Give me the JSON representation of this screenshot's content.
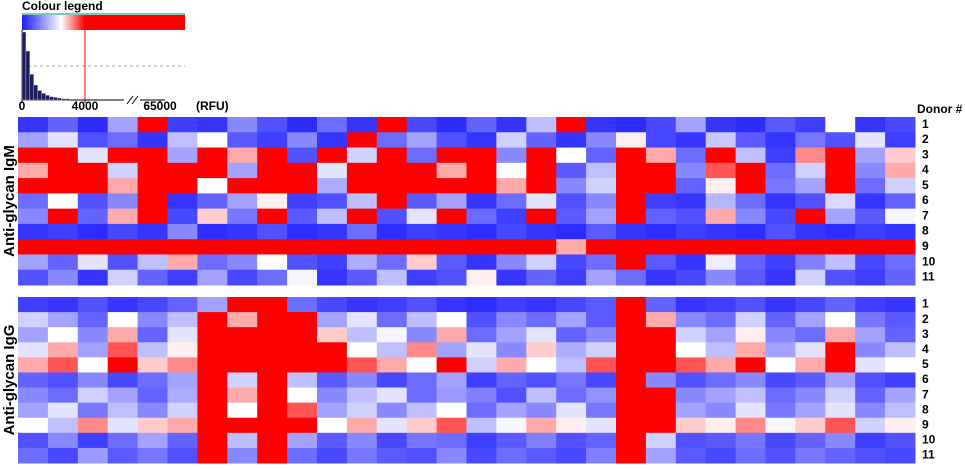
{
  "chart_data": [
    {
      "type": "histogram",
      "title": "Colour legend",
      "xlabel": "(RFU)",
      "bins": [
        0,
        250,
        500,
        750,
        1000,
        1250,
        1500,
        1750,
        2000,
        2250,
        2500,
        2750,
        3000
      ],
      "counts": [
        100,
        72,
        38,
        22,
        14,
        10,
        7,
        5,
        4,
        3,
        2,
        2
      ],
      "ylim": [
        0,
        100
      ],
      "xticks": [
        0,
        4000,
        65000
      ],
      "color": "#1c1c5a",
      "marker_color": "#ff0000",
      "color_stops": [
        {
          "value": 0,
          "color": "#1a1aff"
        },
        {
          "value": 2500,
          "color": "#ffffff"
        },
        {
          "value": 4000,
          "color": "#ff0000"
        }
      ]
    },
    {
      "type": "heatmap",
      "ylabel": "Anti-glycan IgM",
      "rows_title": "Donor #",
      "rows": [
        "1",
        "2",
        "3",
        "4",
        "5",
        "6",
        "7",
        "8",
        "9",
        "10",
        "11"
      ],
      "values": [
        [
          300,
          800,
          200,
          1500,
          5000,
          400,
          300,
          1200,
          600,
          200,
          900,
          300,
          4500,
          500,
          200,
          800,
          300,
          1800,
          6000,
          300,
          200,
          500,
          1500,
          300,
          200,
          700,
          400,
          2500,
          300,
          500
        ],
        [
          1500,
          2200,
          600,
          900,
          300,
          1800,
          2500,
          700,
          400,
          1200,
          300,
          5000,
          900,
          1500,
          600,
          300,
          2000,
          800,
          300,
          1200,
          2600,
          500,
          300,
          1900,
          700,
          300,
          1000,
          600,
          2200,
          400
        ],
        [
          6000,
          5000,
          2200,
          7000,
          4500,
          1500,
          8000,
          3000,
          5000,
          600,
          4800,
          2000,
          6000,
          900,
          7000,
          4200,
          1200,
          5500,
          2500,
          800,
          4600,
          3000,
          900,
          5200,
          1800,
          400,
          3200,
          6000,
          1500,
          2800
        ],
        [
          3000,
          7000,
          5500,
          2000,
          9000,
          6000,
          4000,
          1500,
          8000,
          7000,
          2200,
          5000,
          9500,
          6500,
          3000,
          8000,
          2500,
          12000,
          700,
          1800,
          6500,
          4400,
          1200,
          3500,
          5800,
          900,
          2000,
          4700,
          1200,
          3000
        ],
        [
          5000,
          8000,
          6000,
          3000,
          10000,
          7000,
          2500,
          6000,
          9000,
          4500,
          1600,
          7500,
          8000,
          12000,
          4200,
          6000,
          3000,
          9000,
          1200,
          2000,
          7000,
          5000,
          800,
          2600,
          6000,
          1000,
          1500,
          5000,
          900,
          2000
        ],
        [
          900,
          2500,
          600,
          1200,
          5000,
          300,
          800,
          1500,
          2600,
          400,
          600,
          1800,
          4500,
          700,
          1500,
          300,
          900,
          2200,
          600,
          1200,
          5000,
          400,
          300,
          1700,
          900,
          300,
          600,
          2100,
          300,
          800
        ],
        [
          1200,
          5000,
          800,
          3000,
          6500,
          500,
          2800,
          1000,
          4400,
          700,
          1800,
          4800,
          600,
          2200,
          5500,
          900,
          400,
          6500,
          700,
          1500,
          4600,
          800,
          600,
          3000,
          1200,
          500,
          4000,
          1500,
          700,
          2400
        ],
        [
          300,
          400,
          200,
          500,
          300,
          1200,
          200,
          300,
          600,
          200,
          300,
          900,
          200,
          400,
          300,
          200,
          500,
          300,
          200,
          700,
          300,
          200,
          400,
          300,
          200,
          600,
          300,
          200,
          400,
          300
        ],
        [
          9000,
          12000,
          10000,
          8000,
          15000,
          6000,
          9000,
          11000,
          7000,
          10000,
          5000,
          13000,
          9000,
          8000,
          12000,
          6000,
          10000,
          7500,
          3000,
          9000,
          14000,
          8000,
          6000,
          11000,
          7000,
          5000,
          9000,
          12000,
          6000,
          8000
        ],
        [
          1500,
          800,
          2200,
          600,
          1800,
          3000,
          900,
          1200,
          2500,
          600,
          400,
          1600,
          900,
          2800,
          700,
          300,
          1200,
          2000,
          500,
          900,
          4500,
          700,
          300,
          2300,
          800,
          400,
          1100,
          1800,
          500,
          900
        ],
        [
          600,
          1200,
          300,
          2000,
          800,
          400,
          1500,
          500,
          900,
          2400,
          300,
          700,
          1800,
          400,
          600,
          2600,
          300,
          800,
          400,
          1500,
          900,
          300,
          500,
          1200,
          700,
          300,
          2000,
          600,
          400,
          800
        ]
      ]
    },
    {
      "type": "heatmap",
      "ylabel": "Anti-glycan IgG",
      "rows": [
        "1",
        "2",
        "3",
        "4",
        "5",
        "6",
        "7",
        "8",
        "9",
        "10",
        "11"
      ],
      "values": [
        [
          400,
          300,
          600,
          300,
          500,
          800,
          1500,
          4500,
          6000,
          900,
          500,
          300,
          400,
          600,
          300,
          200,
          400,
          300,
          500,
          700,
          6000,
          800,
          300,
          400,
          600,
          300,
          500,
          800,
          400,
          300
        ],
        [
          2000,
          1500,
          800,
          2500,
          1200,
          1800,
          5000,
          3000,
          7000,
          4200,
          1500,
          2200,
          900,
          1800,
          2500,
          600,
          1200,
          900,
          1500,
          700,
          5500,
          3000,
          1200,
          900,
          2000,
          800,
          1500,
          2500,
          1000,
          700
        ],
        [
          1500,
          2500,
          1200,
          3000,
          800,
          2200,
          6000,
          7000,
          5000,
          8000,
          2800,
          1800,
          2400,
          1200,
          3000,
          900,
          1500,
          2200,
          800,
          1200,
          7000,
          5000,
          2000,
          1500,
          2600,
          1200,
          900,
          3000,
          1500,
          800
        ],
        [
          2200,
          3000,
          1500,
          3500,
          1800,
          2600,
          7500,
          5000,
          9000,
          6000,
          4000,
          2500,
          1800,
          3200,
          1500,
          2200,
          1200,
          2800,
          1600,
          2000,
          9000,
          6000,
          2500,
          1800,
          3000,
          1500,
          2200,
          4200,
          1200,
          1800
        ],
        [
          3000,
          3500,
          2500,
          5000,
          2800,
          3200,
          8000,
          9000,
          10000,
          7000,
          5000,
          3500,
          3000,
          2500,
          4500,
          2000,
          3000,
          2500,
          1800,
          3500,
          11000,
          8000,
          3500,
          3000,
          4200,
          2500,
          3000,
          5000,
          2200,
          2500
        ],
        [
          800,
          600,
          1200,
          500,
          900,
          1500,
          4500,
          2000,
          6000,
          1800,
          700,
          1200,
          500,
          900,
          1500,
          400,
          800,
          600,
          1000,
          500,
          5000,
          1200,
          600,
          900,
          1200,
          500,
          700,
          1500,
          600,
          400
        ],
        [
          1200,
          900,
          2000,
          1500,
          800,
          1600,
          6000,
          3000,
          7500,
          2500,
          1200,
          1800,
          2200,
          900,
          1400,
          1100,
          600,
          1800,
          900,
          1300,
          6500,
          8000,
          1200,
          1500,
          1800,
          900,
          1200,
          2000,
          800,
          1500
        ],
        [
          1500,
          2200,
          1000,
          1800,
          1200,
          2000,
          5000,
          2500,
          8000,
          3500,
          1500,
          2000,
          1200,
          1800,
          2500,
          900,
          1500,
          1200,
          2200,
          1000,
          7000,
          4500,
          1500,
          1200,
          2200,
          1000,
          1500,
          2200,
          1200,
          1800
        ],
        [
          2500,
          1800,
          3200,
          2200,
          2800,
          3000,
          7000,
          5500,
          9000,
          4500,
          2500,
          3000,
          2200,
          2800,
          3500,
          1800,
          2400,
          3000,
          2600,
          2200,
          8500,
          6000,
          2800,
          2600,
          3200,
          2400,
          2800,
          3500,
          2000,
          2600
        ],
        [
          600,
          1200,
          400,
          900,
          1500,
          800,
          4500,
          1800,
          6000,
          1500,
          700,
          1200,
          500,
          1000,
          900,
          400,
          700,
          1100,
          600,
          800,
          5500,
          2000,
          600,
          700,
          1000,
          500,
          800,
          1200,
          400,
          600
        ],
        [
          900,
          500,
          1400,
          700,
          1000,
          600,
          4200,
          1200,
          5000,
          900,
          500,
          1000,
          700,
          600,
          1200,
          500,
          900,
          700,
          500,
          1100,
          4800,
          1500,
          700,
          500,
          900,
          600,
          1000,
          800,
          600,
          500
        ]
      ]
    }
  ]
}
